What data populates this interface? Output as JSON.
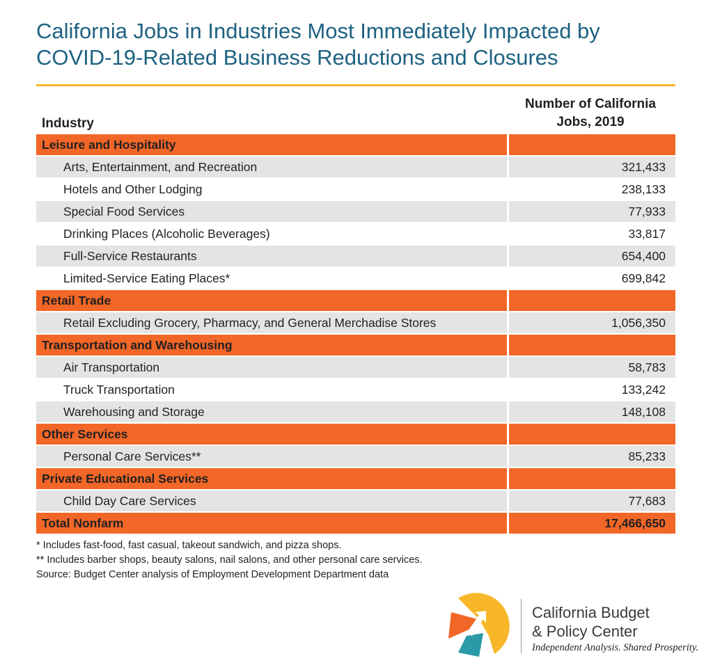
{
  "title": {
    "line1": "California Jobs in Industries Most Immediately Impacted by",
    "line2": "COVID-19-Related Business Reductions and Closures"
  },
  "header": {
    "industry": "Industry",
    "jobs_line1": "Number of California",
    "jobs_line2": "Jobs, 2019"
  },
  "rows": [
    {
      "type": "category",
      "label": "Leisure and Hospitality",
      "value": ""
    },
    {
      "type": "sub",
      "label": "Arts, Entertainment, and Recreation",
      "value": "321,433"
    },
    {
      "type": "sub",
      "label": "Hotels and Other Lodging",
      "value": "238,133"
    },
    {
      "type": "sub",
      "label": "Special Food Services",
      "value": "77,933"
    },
    {
      "type": "sub",
      "label": "Drinking Places (Alcoholic Beverages)",
      "value": "33,817"
    },
    {
      "type": "sub",
      "label": "Full-Service Restaurants",
      "value": "654,400"
    },
    {
      "type": "sub",
      "label": "Limited-Service Eating Places*",
      "value": "699,842"
    },
    {
      "type": "category",
      "label": "Retail Trade",
      "value": ""
    },
    {
      "type": "sub",
      "label": "Retail Excluding Grocery, Pharmacy, and General Merchadise Stores",
      "value": "1,056,350"
    },
    {
      "type": "category",
      "label": "Transportation and Warehousing",
      "value": ""
    },
    {
      "type": "sub",
      "label": "Air Transportation",
      "value": "58,783"
    },
    {
      "type": "sub",
      "label": "Truck Transportation",
      "value": "133,242"
    },
    {
      "type": "sub",
      "label": "Warehousing and Storage",
      "value": "148,108"
    },
    {
      "type": "category",
      "label": "Other Services",
      "value": ""
    },
    {
      "type": "sub",
      "label": "Personal Care Services**",
      "value": "85,233"
    },
    {
      "type": "category",
      "label": "Private Educational Services",
      "value": ""
    },
    {
      "type": "sub",
      "label": "Child Day Care Services",
      "value": "77,683"
    },
    {
      "type": "total",
      "label": "Total Nonfarm",
      "value": "17,466,650"
    }
  ],
  "chart_data": {
    "type": "table",
    "columns": [
      "Industry",
      "Number of California Jobs, 2019"
    ],
    "groups": [
      {
        "category": "Leisure and Hospitality",
        "items": [
          {
            "industry": "Arts, Entertainment, and Recreation",
            "jobs": 321433
          },
          {
            "industry": "Hotels and Other Lodging",
            "jobs": 238133
          },
          {
            "industry": "Special Food Services",
            "jobs": 77933
          },
          {
            "industry": "Drinking Places (Alcoholic Beverages)",
            "jobs": 33817
          },
          {
            "industry": "Full-Service Restaurants",
            "jobs": 654400
          },
          {
            "industry": "Limited-Service Eating Places*",
            "jobs": 699842
          }
        ]
      },
      {
        "category": "Retail Trade",
        "items": [
          {
            "industry": "Retail Excluding Grocery, Pharmacy, and General Merchadise Stores",
            "jobs": 1056350
          }
        ]
      },
      {
        "category": "Transportation and Warehousing",
        "items": [
          {
            "industry": "Air Transportation",
            "jobs": 58783
          },
          {
            "industry": "Truck Transportation",
            "jobs": 133242
          },
          {
            "industry": "Warehousing and Storage",
            "jobs": 148108
          }
        ]
      },
      {
        "category": "Other Services",
        "items": [
          {
            "industry": "Personal Care Services**",
            "jobs": 85233
          }
        ]
      },
      {
        "category": "Private Educational Services",
        "items": [
          {
            "industry": "Child Day Care Services",
            "jobs": 77683
          }
        ]
      }
    ],
    "total": {
      "label": "Total Nonfarm",
      "jobs": 17466650
    }
  },
  "notes": {
    "note1": "* Includes fast-food, fast casual, takeout sandwich, and pizza shops.",
    "note2": "** Includes barber shops, beauty salons, nail salons, and other personal care services.",
    "source": "Source: Budget Center analysis of Employment Development Department data"
  },
  "footer": {
    "org_line1": "California Budget",
    "org_line2": "& Policy Center",
    "tagline": "Independent Analysis. Shared Prosperity."
  },
  "colors": {
    "title": "#1d6281",
    "rule": "#f7b728",
    "category_bar": "#f26727",
    "stripe": "#e4e4e5",
    "logo_yellow": "#f7b728",
    "logo_orange": "#f26727",
    "logo_teal": "#2a9aa8"
  }
}
